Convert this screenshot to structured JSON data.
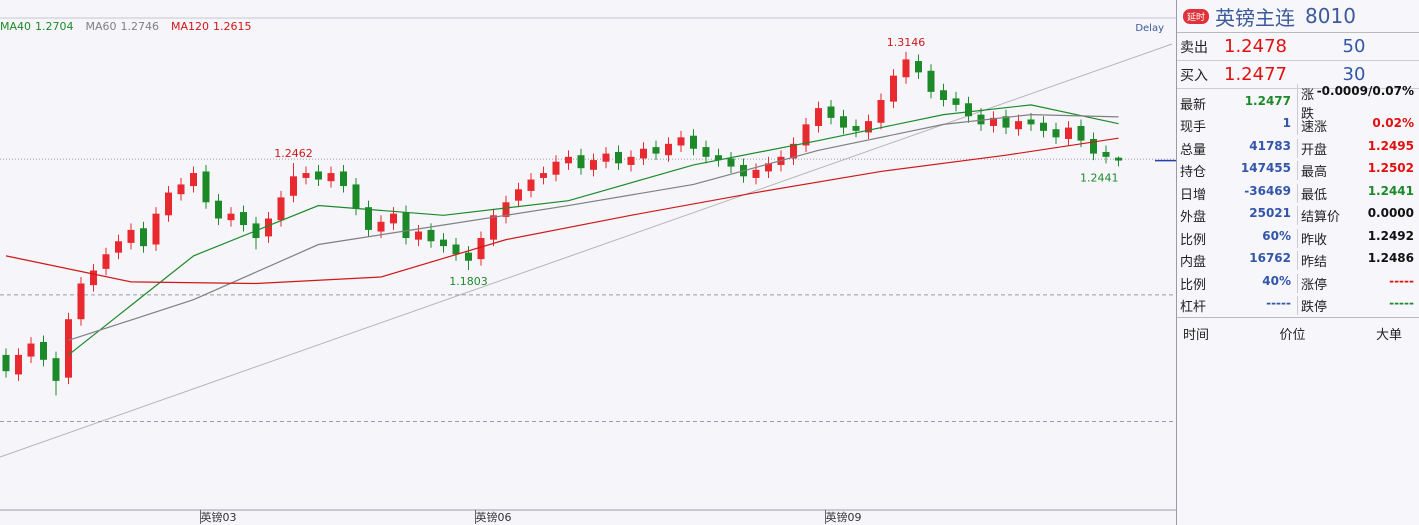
{
  "chart_data": {
    "type": "candlestick",
    "delay_label": "Delay",
    "up_color": "#e8292f",
    "down_color": "#1d8a2a",
    "ylim": [
      1.0325,
      1.3355
    ],
    "grid_lines": [
      1.2486,
      1.165,
      1.087
    ],
    "categories": [
      null,
      null,
      null,
      null,
      null,
      null,
      null,
      null,
      null,
      null,
      null,
      null,
      null,
      null,
      null,
      null,
      null,
      "英镑03",
      null,
      null,
      null,
      null,
      null,
      null,
      null,
      null,
      null,
      null,
      null,
      null,
      null,
      null,
      null,
      null,
      null,
      null,
      null,
      null,
      null,
      "英镑06",
      null,
      null,
      null,
      null,
      null,
      null,
      null,
      null,
      null,
      null,
      null,
      null,
      null,
      null,
      null,
      null,
      null,
      null,
      null,
      null,
      null,
      null,
      null,
      null,
      null,
      null,
      null,
      "英镑09",
      null,
      null,
      null,
      null,
      null,
      null,
      null,
      null,
      null,
      null,
      null,
      null,
      null,
      null,
      null,
      null,
      null,
      null,
      null,
      null,
      null,
      null
    ],
    "open": [
      1.128,
      1.116,
      1.127,
      1.136,
      1.126,
      1.114,
      1.15,
      1.171,
      1.181,
      1.191,
      1.197,
      1.206,
      1.196,
      1.214,
      1.227,
      1.232,
      1.241,
      1.223,
      1.211,
      1.216,
      1.209,
      1.201,
      1.211,
      1.226,
      1.237,
      1.241,
      1.235,
      1.241,
      1.233,
      1.219,
      1.204,
      1.209,
      1.216,
      1.199,
      1.205,
      1.199,
      1.196,
      1.191,
      1.187,
      1.199,
      1.213,
      1.223,
      1.229,
      1.237,
      1.239,
      1.246,
      1.251,
      1.242,
      1.247,
      1.253,
      1.245,
      1.249,
      1.256,
      1.251,
      1.257,
      1.263,
      1.256,
      1.251,
      1.249,
      1.245,
      1.237,
      1.241,
      1.245,
      1.249,
      1.257,
      1.269,
      1.281,
      1.275,
      1.269,
      1.265,
      1.271,
      1.284,
      1.299,
      1.309,
      1.303,
      1.291,
      1.286,
      1.283,
      1.276,
      1.269,
      1.275,
      1.267,
      1.273,
      1.271,
      1.267,
      1.261,
      1.269,
      1.261,
      1.253,
      1.2495
    ],
    "high": [
      1.132,
      1.132,
      1.139,
      1.14,
      1.13,
      1.154,
      1.176,
      1.184,
      1.194,
      1.202,
      1.209,
      1.21,
      1.219,
      1.232,
      1.237,
      1.244,
      1.245,
      1.227,
      1.219,
      1.22,
      1.213,
      1.216,
      1.229,
      1.2462,
      1.244,
      1.245,
      1.244,
      1.245,
      1.237,
      1.223,
      1.214,
      1.219,
      1.22,
      1.208,
      1.209,
      1.203,
      1.2,
      1.195,
      1.204,
      1.218,
      1.226,
      1.234,
      1.24,
      1.244,
      1.251,
      1.254,
      1.255,
      1.252,
      1.256,
      1.257,
      1.254,
      1.259,
      1.26,
      1.262,
      1.266,
      1.267,
      1.26,
      1.255,
      1.253,
      1.249,
      1.246,
      1.25,
      1.254,
      1.262,
      1.274,
      1.284,
      1.285,
      1.279,
      1.273,
      1.276,
      1.289,
      1.304,
      1.3146,
      1.313,
      1.307,
      1.295,
      1.29,
      1.287,
      1.28,
      1.278,
      1.279,
      1.276,
      1.277,
      1.275,
      1.271,
      1.272,
      1.273,
      1.265,
      1.257,
      1.2502
    ],
    "low": [
      1.114,
      1.112,
      1.123,
      1.121,
      1.103,
      1.11,
      1.146,
      1.167,
      1.177,
      1.187,
      1.193,
      1.191,
      1.192,
      1.21,
      1.223,
      1.228,
      1.218,
      1.208,
      1.207,
      1.204,
      1.193,
      1.197,
      1.207,
      1.222,
      1.233,
      1.232,
      1.231,
      1.228,
      1.214,
      1.201,
      1.2,
      1.205,
      1.196,
      1.195,
      1.194,
      1.191,
      1.186,
      1.1803,
      1.183,
      1.195,
      1.209,
      1.219,
      1.225,
      1.233,
      1.235,
      1.242,
      1.239,
      1.238,
      1.243,
      1.242,
      1.241,
      1.245,
      1.248,
      1.247,
      1.253,
      1.251,
      1.246,
      1.244,
      1.24,
      1.234,
      1.233,
      1.237,
      1.241,
      1.245,
      1.253,
      1.265,
      1.27,
      1.264,
      1.262,
      1.261,
      1.267,
      1.28,
      1.295,
      1.298,
      1.286,
      1.281,
      1.278,
      1.271,
      1.266,
      1.265,
      1.264,
      1.263,
      1.266,
      1.262,
      1.258,
      1.257,
      1.256,
      1.248,
      1.246,
      1.2441
    ],
    "close": [
      1.118,
      1.128,
      1.135,
      1.125,
      1.112,
      1.15,
      1.172,
      1.18,
      1.19,
      1.198,
      1.205,
      1.195,
      1.215,
      1.228,
      1.233,
      1.24,
      1.222,
      1.212,
      1.215,
      1.208,
      1.2,
      1.212,
      1.225,
      1.238,
      1.24,
      1.236,
      1.24,
      1.232,
      1.218,
      1.205,
      1.21,
      1.215,
      1.2,
      1.204,
      1.198,
      1.195,
      1.19,
      1.186,
      1.2,
      1.214,
      1.222,
      1.23,
      1.236,
      1.24,
      1.247,
      1.25,
      1.243,
      1.248,
      1.252,
      1.246,
      1.25,
      1.255,
      1.252,
      1.258,
      1.262,
      1.255,
      1.25,
      1.248,
      1.244,
      1.238,
      1.242,
      1.246,
      1.25,
      1.258,
      1.27,
      1.28,
      1.274,
      1.268,
      1.266,
      1.272,
      1.285,
      1.3,
      1.31,
      1.302,
      1.29,
      1.285,
      1.282,
      1.275,
      1.27,
      1.274,
      1.268,
      1.272,
      1.27,
      1.266,
      1.262,
      1.268,
      1.26,
      1.252,
      1.25,
      1.2477
    ],
    "series": [
      {
        "name": "MA40",
        "color": "#1d8a2a",
        "x": [
          5,
          15,
          25,
          35,
          45,
          55,
          65,
          75,
          82,
          89
        ],
        "values": [
          1.128,
          1.189,
          1.22,
          1.214,
          1.223,
          1.245,
          1.26,
          1.276,
          1.282,
          1.2704
        ]
      },
      {
        "name": "MA60",
        "color": "#808080",
        "x": [
          5,
          15,
          25,
          35,
          45,
          55,
          65,
          75,
          82,
          89
        ],
        "values": [
          1.137,
          1.162,
          1.196,
          1.208,
          1.22,
          1.233,
          1.254,
          1.27,
          1.276,
          1.2746
        ]
      },
      {
        "name": "MA120",
        "color": "#d01818",
        "x": [
          0,
          10,
          20,
          30,
          40,
          50,
          60,
          70,
          80,
          89
        ],
        "values": [
          1.189,
          1.173,
          1.172,
          1.176,
          1.199,
          1.214,
          1.228,
          1.241,
          1.251,
          1.2615
        ]
      }
    ],
    "annotations": [
      1.3146,
      1.2462,
      1.1803,
      1.2441
    ]
  },
  "quote_panel": {
    "badge": "延时",
    "name": "英镑主连",
    "code": "8010",
    "ask": [
      "卖出",
      "1.2478",
      "50"
    ],
    "bid": [
      "买入",
      "1.2477",
      "30"
    ],
    "rows": [
      [
        [
          "最新",
          "1.2477"
        ],
        [
          "涨跌",
          "-0.0009/0.07%"
        ]
      ],
      [
        [
          "现手",
          "1"
        ],
        [
          "速涨",
          "0.02%"
        ]
      ],
      [
        [
          "总量",
          "41783"
        ],
        [
          "开盘",
          "1.2495"
        ]
      ],
      [
        [
          "持仓",
          "147455"
        ],
        [
          "最高",
          "1.2502"
        ]
      ],
      [
        [
          "日增",
          "-36469"
        ],
        [
          "最低",
          "1.2441"
        ]
      ],
      [
        [
          "外盘",
          "25021"
        ],
        [
          "结算价",
          "0.0000"
        ]
      ],
      [
        [
          "比例",
          "60%"
        ],
        [
          "昨收",
          "1.2492"
        ]
      ],
      [
        [
          "内盘",
          "16762"
        ],
        [
          "昨结",
          "1.2486"
        ]
      ],
      [
        [
          "比例",
          "40%"
        ],
        [
          "涨停",
          "-----"
        ]
      ],
      [
        [
          "杠杆",
          "-----"
        ],
        [
          "跌停",
          "-----"
        ]
      ]
    ],
    "footer": [
      "时间",
      "价位",
      "大单"
    ]
  }
}
